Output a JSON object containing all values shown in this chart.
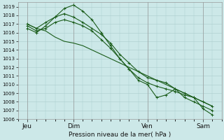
{
  "title": "Pression niveau de la mer( hPa )",
  "background_color": "#cce8e8",
  "grid_color": "#aacccc",
  "line_color": "#1a5c1a",
  "ylim": [
    1006,
    1019.5
  ],
  "yticks": [
    1006,
    1007,
    1008,
    1009,
    1010,
    1011,
    1012,
    1013,
    1014,
    1015,
    1016,
    1017,
    1018,
    1019
  ],
  "x_ticks_labels": [
    "Jeu",
    "Dim",
    "Ven",
    "Sam"
  ],
  "x_ticks_pos": [
    0.5,
    3.0,
    7.0,
    10.0
  ],
  "xlim": [
    0,
    11
  ],
  "lines": [
    {
      "y": [
        1017.0,
        1016.5,
        1017.2,
        1017.8,
        1018.2,
        1017.8,
        1017.2,
        1016.5,
        1015.8,
        1014.8,
        1013.5,
        1012.5,
        1011.5,
        1010.8,
        1010.5,
        1010.2,
        1009.5,
        1009.0,
        1008.5,
        1008.0,
        1007.5
      ],
      "marker": "+",
      "lw": 0.8
    },
    {
      "y": [
        1016.5,
        1016.0,
        1016.8,
        1017.8,
        1018.8,
        1019.2,
        1018.5,
        1017.5,
        1016.0,
        1014.5,
        1013.0,
        1011.8,
        1010.5,
        1010.0,
        1008.5,
        1008.8,
        1009.5,
        1008.5,
        1008.0,
        1007.5,
        1007.0
      ],
      "marker": "+",
      "lw": 0.8
    },
    {
      "y": [
        1016.8,
        1016.2,
        1016.5,
        1017.2,
        1017.5,
        1017.2,
        1016.8,
        1016.2,
        1015.2,
        1014.2,
        1013.0,
        1011.8,
        1010.8,
        1010.2,
        1009.8,
        1009.5,
        1009.2,
        1008.8,
        1008.5,
        1007.2,
        1006.5
      ],
      "marker": "+",
      "lw": 0.8
    },
    {
      "y": [
        1017.0,
        1016.5,
        1016.2,
        1015.5,
        1015.0,
        1014.8,
        1014.5,
        1014.0,
        1013.5,
        1013.0,
        1012.5,
        1012.0,
        1011.5,
        1011.0,
        1010.5,
        1010.0,
        1009.5,
        1009.0,
        1008.5,
        1008.0,
        1007.5
      ],
      "marker": null,
      "lw": 0.8
    }
  ],
  "n_points": 21,
  "figsize": [
    3.2,
    2.0
  ],
  "dpi": 100,
  "ylabel_fontsize": 5.0,
  "xlabel_fontsize": 6.5,
  "tick_labelsize": 5.0
}
